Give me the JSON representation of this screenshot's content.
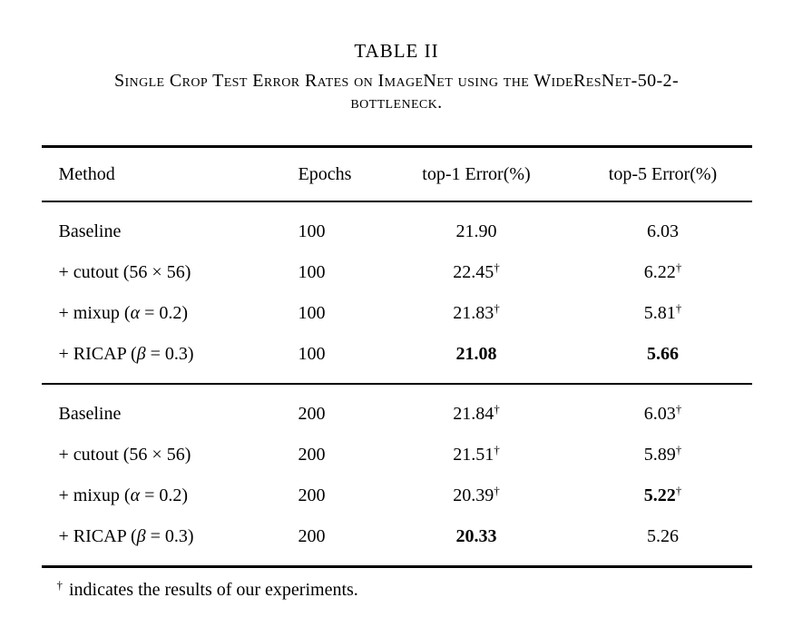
{
  "title": {
    "table_number": "TABLE II",
    "caption": "Single Crop Test Error Rates on ImageNet using the WideResNet-50-2-bottleneck."
  },
  "table": {
    "headers": [
      "Method",
      "Epochs",
      "top-1 Error(%)",
      "top-5 Error(%)"
    ],
    "groups": [
      {
        "rows": [
          {
            "method_pre": "Baseline",
            "method_var": "",
            "method_post": "",
            "epochs": "100",
            "top1": {
              "value": "21.90",
              "dagger": "",
              "bold": false
            },
            "top5": {
              "value": "6.03",
              "dagger": "",
              "bold": false
            }
          },
          {
            "method_pre": "+ cutout (56 × 56)",
            "method_var": "",
            "method_post": "",
            "epochs": "100",
            "top1": {
              "value": "22.45",
              "dagger": "†",
              "bold": false
            },
            "top5": {
              "value": "6.22",
              "dagger": "†",
              "bold": false
            }
          },
          {
            "method_pre": "+ mixup (",
            "method_var": "α",
            "method_post": " = 0.2)",
            "epochs": "100",
            "top1": {
              "value": "21.83",
              "dagger": "†",
              "bold": false
            },
            "top5": {
              "value": "5.81",
              "dagger": "†",
              "bold": false
            }
          },
          {
            "method_pre": "+ RICAP (",
            "method_var": "β",
            "method_post": " = 0.3)",
            "epochs": "100",
            "top1": {
              "value": "21.08",
              "dagger": "",
              "bold": true
            },
            "top5": {
              "value": "5.66",
              "dagger": "",
              "bold": true
            }
          }
        ]
      },
      {
        "rows": [
          {
            "method_pre": "Baseline",
            "method_var": "",
            "method_post": "",
            "epochs": "200",
            "top1": {
              "value": "21.84",
              "dagger": "†",
              "bold": false
            },
            "top5": {
              "value": "6.03",
              "dagger": "†",
              "bold": false
            }
          },
          {
            "method_pre": "+ cutout (56 × 56)",
            "method_var": "",
            "method_post": "",
            "epochs": "200",
            "top1": {
              "value": "21.51",
              "dagger": "†",
              "bold": false
            },
            "top5": {
              "value": "5.89",
              "dagger": "†",
              "bold": false
            }
          },
          {
            "method_pre": "+ mixup (",
            "method_var": "α",
            "method_post": " = 0.2)",
            "epochs": "200",
            "top1": {
              "value": "20.39",
              "dagger": "†",
              "bold": false
            },
            "top5": {
              "value": "5.22",
              "dagger": "†",
              "bold": true
            }
          },
          {
            "method_pre": "+ RICAP (",
            "method_var": "β",
            "method_post": " = 0.3)",
            "epochs": "200",
            "top1": {
              "value": "20.33",
              "dagger": "",
              "bold": true
            },
            "top5": {
              "value": "5.26",
              "dagger": "",
              "bold": false
            }
          }
        ]
      }
    ],
    "footnote": {
      "dagger": "†",
      "text": "indicates the results of our experiments."
    }
  }
}
